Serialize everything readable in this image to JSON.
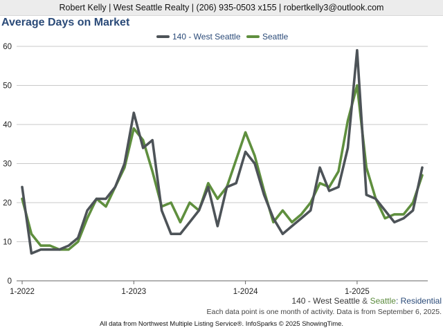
{
  "header": {
    "contact": "Robert Kelly | West Seattle Realty | (206) 935-0503 x155 | robertkelly3@outlook.com"
  },
  "subtitle": {
    "part1": "140 - West Seattle",
    "part2": " & ",
    "part3": "Seattle",
    "part4": ": Residential"
  },
  "note": "Each data point is one month of activity. Data is from September 6, 2025.",
  "footer": "All data from Northwest Multiple Listing Service®. InfoSparks © 2025 ShowingTime.",
  "chart_data": {
    "type": "line",
    "title": "Average Days on Market",
    "xlabel": "",
    "ylabel": "",
    "ylim": [
      0,
      60
    ],
    "yticks": [
      0,
      10,
      20,
      30,
      40,
      50,
      60
    ],
    "grid": true,
    "legend_position": "top-center",
    "x_tick_labels": [
      "1-2022",
      "1-2023",
      "1-2024",
      "1-2025"
    ],
    "x": [
      "2022-01",
      "2022-02",
      "2022-03",
      "2022-04",
      "2022-05",
      "2022-06",
      "2022-07",
      "2022-08",
      "2022-09",
      "2022-10",
      "2022-11",
      "2022-12",
      "2023-01",
      "2023-02",
      "2023-03",
      "2023-04",
      "2023-05",
      "2023-06",
      "2023-07",
      "2023-08",
      "2023-09",
      "2023-10",
      "2023-11",
      "2023-12",
      "2024-01",
      "2024-02",
      "2024-03",
      "2024-04",
      "2024-05",
      "2024-06",
      "2024-07",
      "2024-08",
      "2024-09",
      "2024-10",
      "2024-11",
      "2024-12",
      "2025-01",
      "2025-02",
      "2025-03",
      "2025-04",
      "2025-05",
      "2025-06",
      "2025-07",
      "2025-08"
    ],
    "series": [
      {
        "name": "140 - West Seattle",
        "color": "#4d5358",
        "values": [
          24,
          7,
          8,
          8,
          8,
          9,
          11,
          18,
          21,
          21,
          24,
          30,
          43,
          34,
          36,
          18,
          12,
          12,
          15,
          18,
          24,
          14,
          24,
          25,
          33,
          30,
          22,
          16,
          12,
          14,
          16,
          18,
          29,
          23,
          24,
          34,
          59,
          22,
          21,
          18,
          15,
          16,
          18,
          29
        ]
      },
      {
        "name": "Seattle",
        "color": "#5f8f3e",
        "values": [
          21,
          12,
          9,
          9,
          8,
          8,
          10,
          16,
          21,
          19,
          24,
          29,
          39,
          36,
          28,
          19,
          20,
          15,
          20,
          18,
          25,
          21,
          24,
          31,
          38,
          32,
          23,
          15,
          18,
          15,
          17,
          20,
          25,
          24,
          28,
          41,
          50,
          29,
          21,
          16,
          17,
          17,
          20,
          27
        ]
      }
    ]
  }
}
